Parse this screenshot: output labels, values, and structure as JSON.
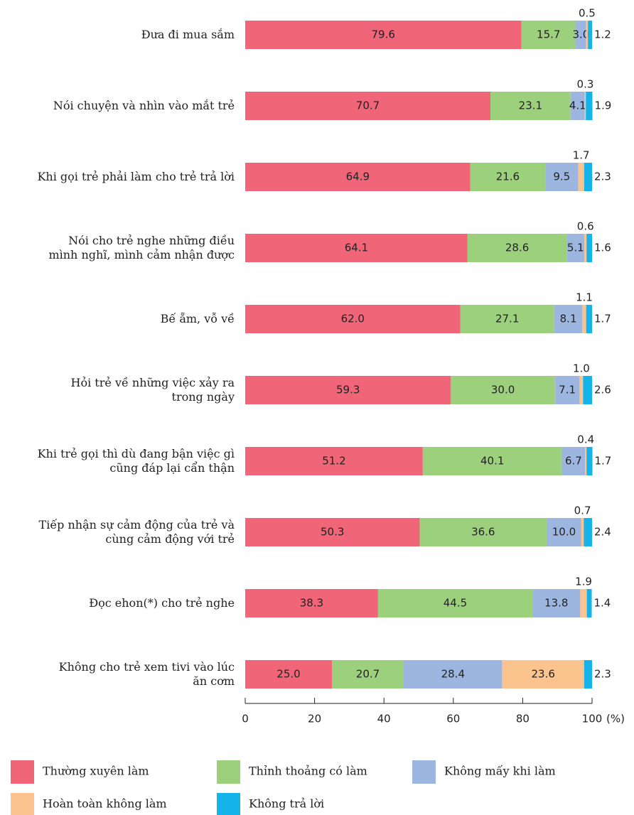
{
  "chart_data": {
    "type": "stacked-barh",
    "categories": [
      "Đưa đi mua sắm",
      "Nói chuyện và nhìn vào mắt trẻ",
      "Khi gọi trẻ phải làm cho trẻ trả lời",
      "Nói cho trẻ nghe những điều\nmình nghĩ, mình cảm nhận được",
      "Bế ẵm, vỗ về",
      "Hỏi trẻ về những việc xảy ra\ntrong ngày",
      "Khi trẻ gọi thì dù đang bận việc gì\ncũng đáp lại cẩn thận",
      "Tiếp nhận sự cảm động của trẻ và\ncùng cảm động với trẻ",
      "Đọc ehon(*) cho trẻ nghe",
      "Không cho trẻ xem tivi vào lúc\năn cơm"
    ],
    "series": [
      {
        "name": "Thường xuyên làm",
        "color": "#f06577",
        "values": [
          79.6,
          70.7,
          64.9,
          64.1,
          62.0,
          59.3,
          51.2,
          50.3,
          38.3,
          25.0
        ]
      },
      {
        "name": "Thỉnh thoảng có làm",
        "color": "#9dd07d",
        "values": [
          15.7,
          23.1,
          21.6,
          28.6,
          27.1,
          30.0,
          40.1,
          36.6,
          44.5,
          20.7
        ]
      },
      {
        "name": "Không mấy khi làm",
        "color": "#9db6e0",
        "values": [
          3.0,
          4.1,
          9.5,
          5.1,
          8.1,
          7.1,
          6.7,
          10.0,
          13.8,
          28.4
        ]
      },
      {
        "name": "Hoàn toàn không làm",
        "color": "#fbc48e",
        "values": [
          0.5,
          0.3,
          1.7,
          0.6,
          1.1,
          1.0,
          0.4,
          0.7,
          1.9,
          23.6
        ]
      },
      {
        "name": "Không  trả lời",
        "color": "#14b4ea",
        "values": [
          1.2,
          1.9,
          2.3,
          1.6,
          1.7,
          2.6,
          1.7,
          2.4,
          1.4,
          2.3
        ]
      }
    ],
    "value_labels": [
      [
        "79.6",
        "70.7",
        "64.9",
        "64.1",
        "62.0",
        "59.3",
        "51.2",
        "50.3",
        "38.3",
        "25.0"
      ],
      [
        "15.7",
        "23.1",
        "21.6",
        "28.6",
        "27.1",
        "30.0",
        "40.1",
        "36.6",
        "44.5",
        "20.7"
      ],
      [
        "3.0",
        "4.1",
        "9.5",
        "5.1",
        "8.1",
        "7.1",
        "6.7",
        "10.0",
        "13.8",
        "28.4"
      ],
      [
        "0.5",
        "0.3",
        "1.7",
        "0.6",
        "1.1",
        "1.0",
        "0.4",
        "0.7",
        "1.9",
        "23.6"
      ],
      [
        "1.2",
        "1.9",
        "2.3",
        "1.6",
        "1.7",
        "2.6",
        "1.7",
        "2.4",
        "1.4",
        "2.3"
      ]
    ],
    "x_label": "(%)",
    "xlim": [
      0,
      100
    ],
    "xticks": [
      0,
      20,
      40,
      60,
      80,
      100
    ]
  }
}
